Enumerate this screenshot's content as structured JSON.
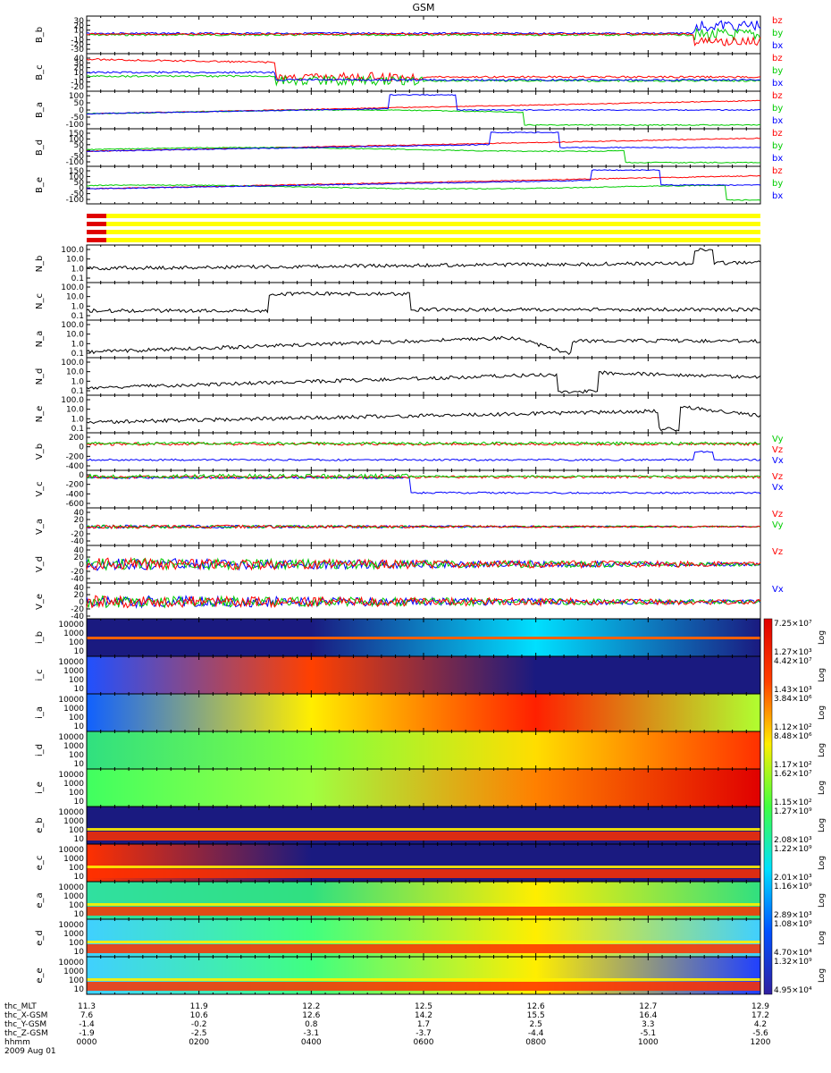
{
  "title": "GSM",
  "x_ticks": [
    "0000",
    "0200",
    "0400",
    "0600",
    "0800",
    "1000",
    "1200"
  ],
  "ephemeris": [
    {
      "label": "thc_MLT",
      "values": [
        "11.3",
        "11.9",
        "12.2",
        "12.5",
        "12.6",
        "12.7",
        "12.9"
      ]
    },
    {
      "label": "thc_X-GSM",
      "values": [
        "7.6",
        "10.6",
        "12.6",
        "14.2",
        "15.5",
        "16.4",
        "17.2"
      ]
    },
    {
      "label": "thc_Y-GSM",
      "values": [
        "-1.4",
        "-0.2",
        "0.8",
        "1.7",
        "2.5",
        "3.3",
        "4.2"
      ]
    },
    {
      "label": "thc_Z-GSM",
      "values": [
        "-1.9",
        "-2.5",
        "-3.1",
        "-3.7",
        "-4.4",
        "-5.1",
        "-5.6"
      ]
    },
    {
      "label": "hhmm",
      "values": [
        "0000",
        "0200",
        "0400",
        "0600",
        "0800",
        "1000",
        "1200"
      ]
    }
  ],
  "date_label": "2009 Aug 01",
  "colors": {
    "x": "#0000ff",
    "y": "#00cc00",
    "z": "#ff0000",
    "density": "#000000",
    "bar": "#ffff00"
  },
  "b_panels": [
    {
      "label": "B_b",
      "ticks": [
        "30",
        "20",
        "10",
        "0",
        "-10",
        "-20",
        "-30"
      ]
    },
    {
      "label": "B_c",
      "ticks": [
        "40",
        "30",
        "20",
        "10",
        "0",
        "-10",
        "-20"
      ]
    },
    {
      "label": "B_a",
      "ticks": [
        "100",
        "50",
        "0",
        "-50",
        "-100"
      ]
    },
    {
      "label": "B_d",
      "ticks": [
        "150",
        "100",
        "50",
        "0",
        "-50",
        "-100"
      ]
    },
    {
      "label": "B_e",
      "ticks": [
        "150",
        "100",
        "50",
        "0",
        "-50",
        "-100"
      ]
    }
  ],
  "b_legend": [
    "bz",
    "by",
    "bx"
  ],
  "n_panels": [
    {
      "label": "N_b",
      "ticks": [
        "100.0",
        "10.0",
        "1.0",
        "0.1"
      ]
    },
    {
      "label": "N_c",
      "ticks": [
        "100.0",
        "10.0",
        "1.0",
        "0.1"
      ]
    },
    {
      "label": "N_a",
      "ticks": [
        "100.0",
        "10.0",
        "1.0",
        "0.1"
      ]
    },
    {
      "label": "N_d",
      "ticks": [
        "100.0",
        "10.0",
        "1.0",
        "0.1"
      ]
    },
    {
      "label": "N_e",
      "ticks": [
        "100.0",
        "10.0",
        "1.0",
        "0.1"
      ]
    }
  ],
  "v_panels": [
    {
      "label": "V_b",
      "ticks": [
        "200",
        "0",
        "-200",
        "-400"
      ],
      "legend": [
        "Vy",
        "Vz",
        "Vx"
      ]
    },
    {
      "label": "V_c",
      "ticks": [
        "0",
        "-200",
        "-400",
        "-600"
      ],
      "legend": [
        "Vz",
        "Vx"
      ]
    },
    {
      "label": "V_a",
      "ticks": [
        "40",
        "20",
        "0",
        "-20",
        "-40"
      ],
      "legend": [
        "Vz",
        "Vy"
      ]
    },
    {
      "label": "V_d",
      "ticks": [
        "40",
        "20",
        "0",
        "-20",
        "-40"
      ],
      "legend": [
        "Vz"
      ]
    },
    {
      "label": "V_e",
      "ticks": [
        "40",
        "20",
        "0",
        "-20",
        "-40"
      ],
      "legend": [
        "Vx"
      ]
    }
  ],
  "spec_ticks": [
    "10000",
    "1000",
    "100",
    "10"
  ],
  "spec_panels": [
    {
      "label": "i_b",
      "cbar": [
        "7.25×10⁷",
        "1.27×10³"
      ]
    },
    {
      "label": "i_c",
      "cbar": [
        "4.42×10⁷",
        "1.43×10³"
      ]
    },
    {
      "label": "i_a",
      "cbar": [
        "3.84×10⁶",
        "1.12×10²"
      ]
    },
    {
      "label": "i_d",
      "cbar": [
        "8.48×10⁶",
        "1.17×10²"
      ]
    },
    {
      "label": "i_e",
      "cbar": [
        "1.62×10⁷",
        "1.15×10²"
      ]
    },
    {
      "label": "e_b",
      "cbar": [
        "1.27×10⁹",
        "2.08×10³"
      ]
    },
    {
      "label": "e_c",
      "cbar": [
        "1.22×10⁹",
        "2.01×10³"
      ]
    },
    {
      "label": "e_a",
      "cbar": [
        "1.16×10⁹",
        "2.89×10³"
      ]
    },
    {
      "label": "e_d",
      "cbar": [
        "1.08×10⁹",
        "4.70×10⁴"
      ]
    },
    {
      "label": "e_e",
      "cbar": [
        "1.32×10⁹",
        "4.95×10⁴"
      ]
    }
  ],
  "cbar_unit": "Log"
}
